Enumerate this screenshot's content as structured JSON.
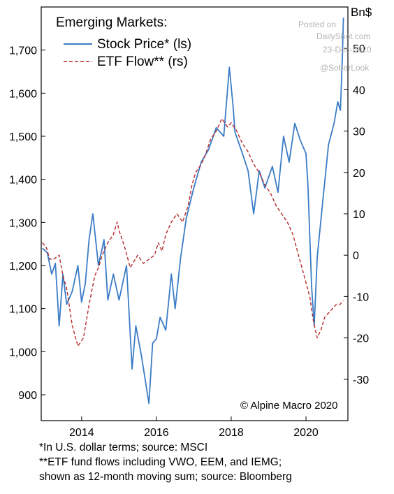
{
  "chart_data": {
    "type": "line",
    "legend_title": "Emerging Markets:",
    "legend_position": "top-left",
    "right_axis_unit": "Bn$",
    "credit": "© Alpine Macro 2020",
    "x_axis": {
      "ticks": [
        "2014",
        "2016",
        "2018",
        "2020"
      ],
      "range": [
        2012.92,
        2021.12
      ]
    },
    "y_left": {
      "ticks": [
        900,
        1000,
        1100,
        1200,
        1300,
        1400,
        1500,
        1600,
        1700
      ],
      "tick_labels": [
        "900",
        "1,000",
        "1,100",
        "1,200",
        "1,300",
        "1,400",
        "1,500",
        "1,600",
        "1,700"
      ],
      "range": [
        840,
        1800
      ]
    },
    "y_right": {
      "ticks": [
        -30,
        -20,
        -10,
        0,
        10,
        20,
        30,
        40,
        50
      ],
      "tick_labels": [
        "-30",
        "-20",
        "-10",
        "0",
        "10",
        "20",
        "30",
        "40",
        "50"
      ],
      "range": [
        -40,
        60
      ]
    },
    "grid": false,
    "series": [
      {
        "name": "Stock Price* (ls)",
        "axis": "left",
        "color": "#3b7cc6",
        "style": "solid",
        "x": [
          2012.95,
          2013.08,
          2013.2,
          2013.3,
          2013.4,
          2013.5,
          2013.6,
          2013.75,
          2013.9,
          2014.0,
          2014.1,
          2014.2,
          2014.3,
          2014.45,
          2014.6,
          2014.7,
          2014.85,
          2015.0,
          2015.2,
          2015.35,
          2015.45,
          2015.6,
          2015.8,
          2015.9,
          2016.0,
          2016.1,
          2016.25,
          2016.4,
          2016.5,
          2016.65,
          2016.8,
          2017.0,
          2017.2,
          2017.4,
          2017.6,
          2017.8,
          2017.95,
          2018.05,
          2018.1,
          2018.3,
          2018.45,
          2018.6,
          2018.75,
          2018.9,
          2019.1,
          2019.25,
          2019.4,
          2019.55,
          2019.7,
          2019.85,
          2020.0,
          2020.05,
          2020.15,
          2020.22,
          2020.3,
          2020.45,
          2020.6,
          2020.75,
          2020.85,
          2020.92,
          2020.97,
          2021.0
        ],
        "values": [
          1240,
          1230,
          1180,
          1205,
          1060,
          1180,
          1110,
          1140,
          1200,
          1115,
          1160,
          1260,
          1320,
          1200,
          1260,
          1120,
          1180,
          1120,
          1200,
          960,
          1060,
          990,
          880,
          1020,
          1030,
          1080,
          1050,
          1180,
          1100,
          1220,
          1310,
          1380,
          1440,
          1470,
          1520,
          1500,
          1660,
          1570,
          1510,
          1460,
          1420,
          1320,
          1420,
          1380,
          1430,
          1370,
          1500,
          1440,
          1530,
          1490,
          1460,
          1390,
          1150,
          1060,
          1220,
          1350,
          1480,
          1530,
          1580,
          1560,
          1680,
          1775
        ]
      },
      {
        "name": "ETF Flow** (rs)",
        "axis": "right",
        "color": "#b52a2a",
        "style": "dashed",
        "x": [
          2012.95,
          2013.05,
          2013.15,
          2013.25,
          2013.4,
          2013.5,
          2013.6,
          2013.75,
          2013.9,
          2014.05,
          2014.2,
          2014.35,
          2014.45,
          2014.55,
          2014.7,
          2014.85,
          2014.95,
          2015.0,
          2015.15,
          2015.3,
          2015.5,
          2015.65,
          2015.8,
          2015.95,
          2016.05,
          2016.15,
          2016.25,
          2016.4,
          2016.55,
          2016.7,
          2016.85,
          2016.95,
          2017.05,
          2017.2,
          2017.3,
          2017.45,
          2017.6,
          2017.75,
          2017.9,
          2018.0,
          2018.15,
          2018.3,
          2018.45,
          2018.6,
          2018.75,
          2018.9,
          2019.05,
          2019.2,
          2019.35,
          2019.5,
          2019.65,
          2019.8,
          2019.95,
          2020.1,
          2020.2,
          2020.3,
          2020.4,
          2020.5,
          2020.6,
          2020.7,
          2020.8,
          2020.9,
          2021.0
        ],
        "values": [
          3,
          2,
          -1,
          -1,
          0,
          -5,
          -8,
          -17,
          -22,
          -20,
          -12,
          -5,
          -3,
          0,
          3,
          5,
          8,
          6,
          2,
          -3,
          0,
          -2,
          -1,
          0,
          3,
          1,
          5,
          8,
          10,
          8,
          12,
          17,
          20,
          22,
          24,
          28,
          30,
          33,
          31,
          32,
          30,
          27,
          25,
          22,
          20,
          17,
          15,
          12,
          10,
          8,
          5,
          0,
          -5,
          -10,
          -16,
          -20,
          -18,
          -15,
          -14,
          -13,
          -12,
          -12,
          -11
        ]
      }
    ]
  },
  "watermark": {
    "line1": "Posted on",
    "line2": "DailyShot.com",
    "line3": "23-Dec-2020",
    "line4": "@SoberLook"
  },
  "notes": {
    "line1": "*In U.S. dollar terms; source: MSCI",
    "line2": "**ETF fund flows including VWO, EEM, and IEMG;",
    "line3": "shown as 12-month moving sum; source: Bloomberg"
  }
}
